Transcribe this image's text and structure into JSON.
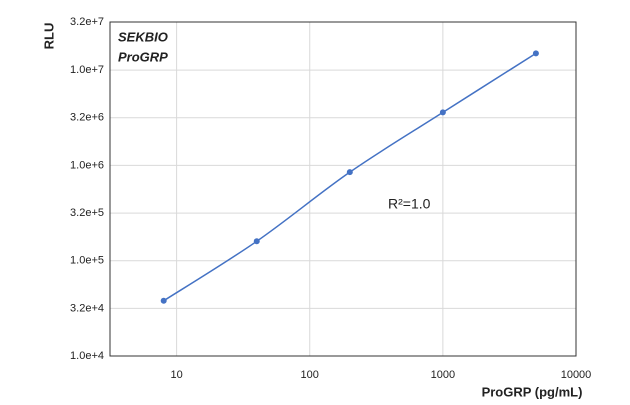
{
  "chart_data": {
    "type": "line",
    "annotations": [
      "SEKBIO",
      "ProGRP",
      "R²=1.0"
    ],
    "x_label": "ProGRP (pg/mL)",
    "y_label": "RLU",
    "x": [
      8,
      40,
      200,
      1000,
      5000
    ],
    "series": [
      {
        "color": "#4472c4",
        "values": [
          38000,
          160000,
          850000,
          3600000,
          15000000
        ]
      }
    ],
    "xlim": [
      3.16,
      10000
    ],
    "ylim": [
      10000,
      32000000
    ],
    "xticks": [
      10,
      100,
      1000,
      10000
    ],
    "yticks": [
      {
        "value": 10000,
        "label": "1.0e+4"
      },
      {
        "value": 31623,
        "label": "3.2e+4"
      },
      {
        "value": 100000,
        "label": "1.0e+5"
      },
      {
        "value": 316228,
        "label": "3.2e+5"
      },
      {
        "value": 1000000,
        "label": "1.0e+6"
      },
      {
        "value": 3162278,
        "label": "3.2e+6"
      },
      {
        "value": 10000000,
        "label": "1.0e+7"
      },
      {
        "value": 32000000,
        "label": "3.2e+7"
      }
    ],
    "log_x": true,
    "log_y": true,
    "grid": true
  }
}
